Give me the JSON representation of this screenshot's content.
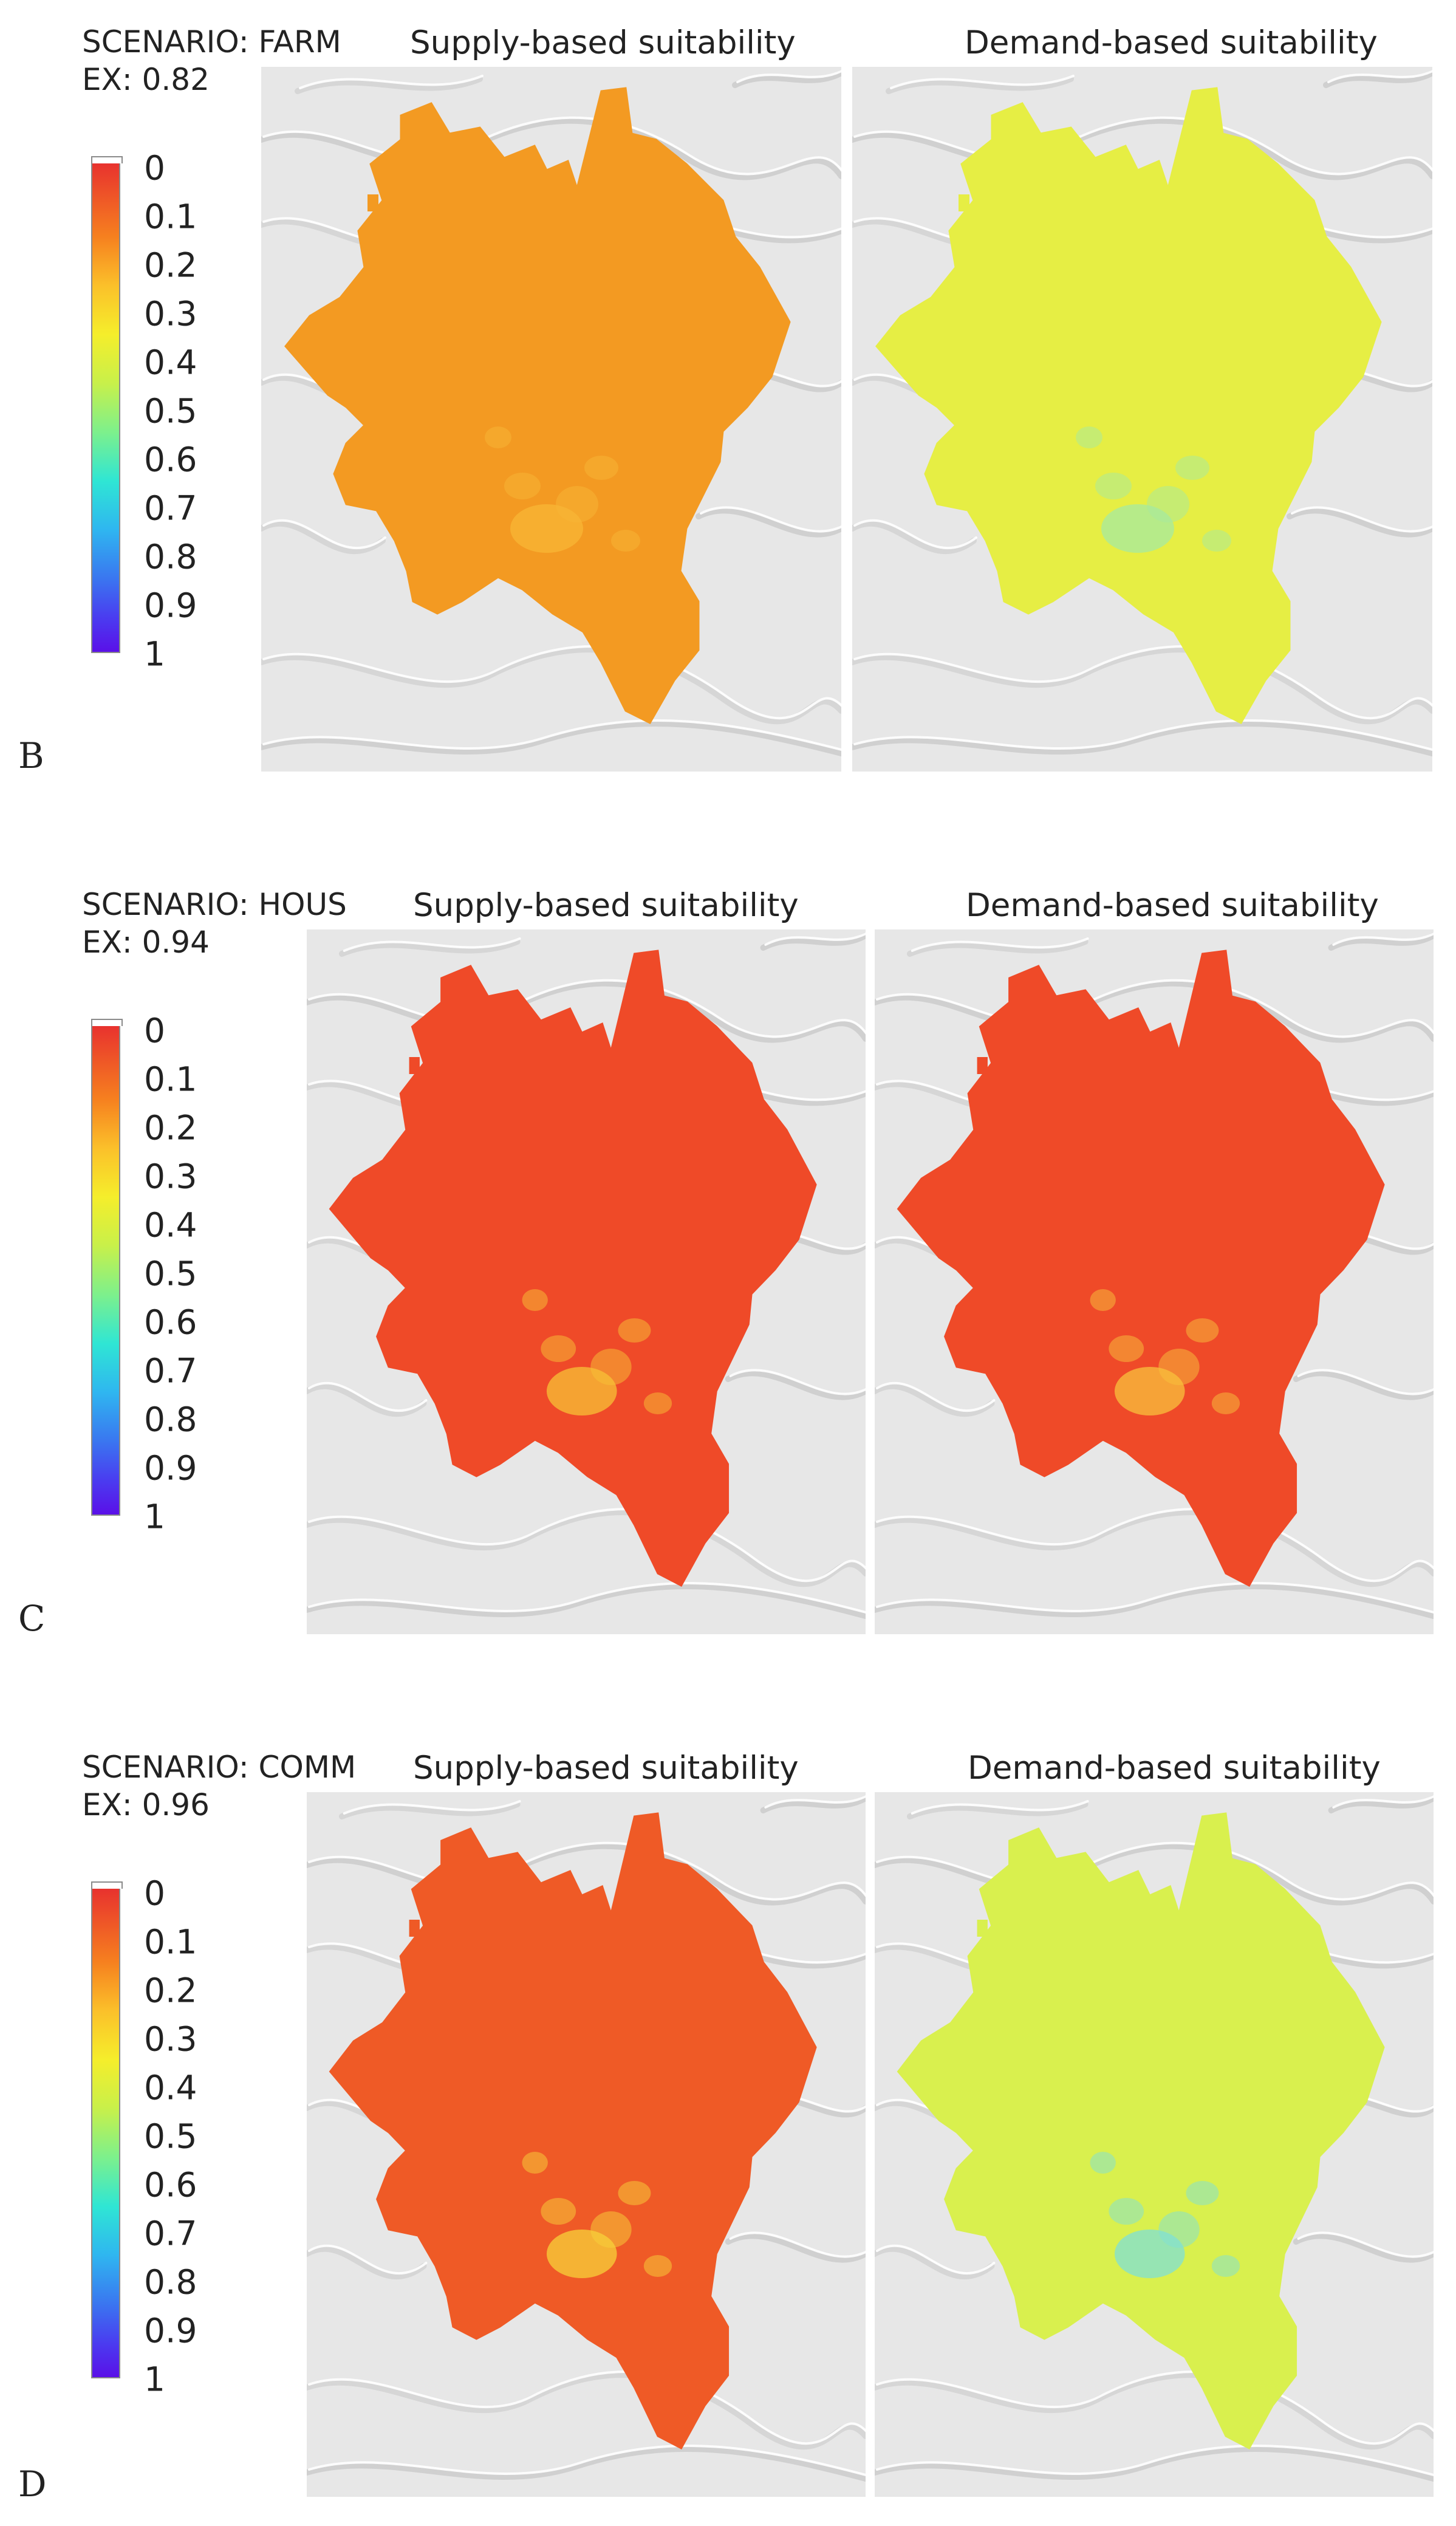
{
  "panels": [
    {
      "letter": "B",
      "scenario_title": "SCENARIO: FARM",
      "ex_label": "EX: 0.82",
      "maps": [
        {
          "title": "Supply-based suitability",
          "base_color": "#f39a22",
          "highlight_color": "#f8b636"
        },
        {
          "title": "Demand-based suitability",
          "base_color": "#e6ee44",
          "highlight_color": "#a6eaa0"
        }
      ]
    },
    {
      "letter": "C",
      "scenario_title": "SCENARIO: HOUS",
      "ex_label": "EX: 0.94",
      "maps": [
        {
          "title": "Supply-based suitability",
          "base_color": "#ef4a28",
          "highlight_color": "#f7c236"
        },
        {
          "title": "Demand-based suitability",
          "base_color": "#ef4a28",
          "highlight_color": "#f8c23c"
        }
      ]
    },
    {
      "letter": "D",
      "scenario_title": "SCENARIO: COMM",
      "ex_label": "EX: 0.96",
      "maps": [
        {
          "title": "Supply-based suitability",
          "base_color": "#ef5a26",
          "highlight_color": "#f7d23a"
        },
        {
          "title": "Demand-based suitability",
          "base_color": "#d9f04e",
          "highlight_color": "#7fe0d6"
        }
      ]
    }
  ],
  "legend": {
    "ticks": [
      "0",
      "0.1",
      "0.2",
      "0.3",
      "0.4",
      "0.5",
      "0.6",
      "0.7",
      "0.8",
      "0.9",
      "1"
    ]
  }
}
